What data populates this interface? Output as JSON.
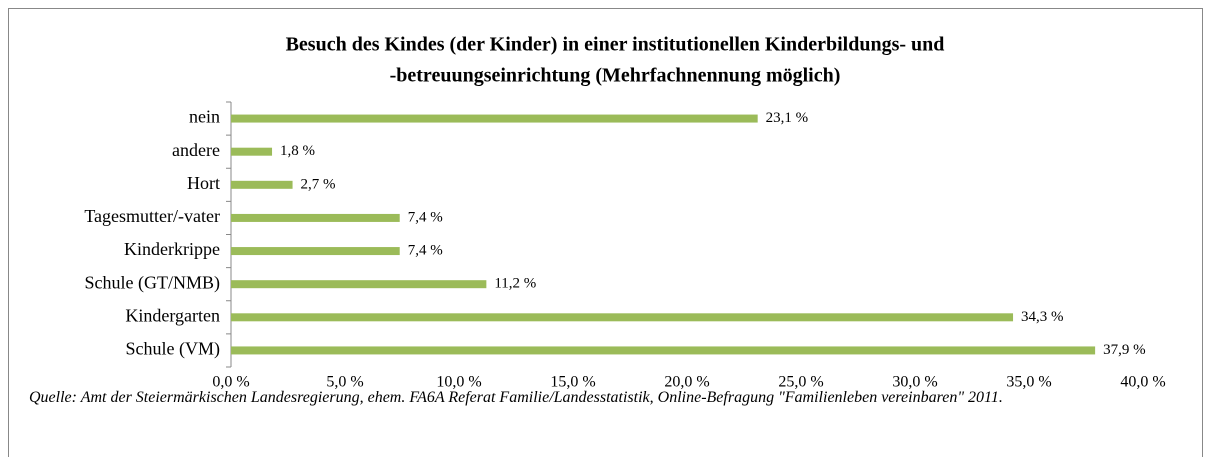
{
  "chart_data": {
    "type": "hbar",
    "title": [
      "Besuch des Kindes (der Kinder) in einer institutionellen Kinderbildungs- und",
      "-betreuungseinrichtung (Mehrfachnennung möglich)"
    ],
    "categories": [
      "nein",
      "andere",
      "Hort",
      "Tagesmutter/-vater",
      "Kinderkrippe",
      "Schule (GT/NMB)",
      "Kindergarten",
      "Schule (VM)"
    ],
    "values": [
      23.1,
      1.8,
      2.7,
      7.4,
      7.4,
      11.2,
      34.3,
      37.9
    ],
    "value_labels": [
      "23,1 %",
      "1,8 %",
      "2,7 %",
      "7,4 %",
      "7,4 %",
      "11,2 %",
      "34,3 %",
      "37,9 %"
    ],
    "color": "#9bbb59",
    "xlim": [
      0,
      40
    ],
    "xticks": [
      {
        "value": 0,
        "label": "0,0 %"
      },
      {
        "value": 5,
        "label": "5,0 %"
      },
      {
        "value": 10,
        "label": "10,0 %"
      },
      {
        "value": 15,
        "label": "15,0 %"
      },
      {
        "value": 20,
        "label": "20,0 %"
      },
      {
        "value": 25,
        "label": "25,0 %"
      },
      {
        "value": 30,
        "label": "30,0 %"
      },
      {
        "value": 35,
        "label": "35,0 %"
      },
      {
        "value": 40,
        "label": "40,0 %"
      }
    ],
    "grid": false,
    "source": "Quelle: Amt der Steiermärkischen Landesregierung, ehem. FA6A Referat Familie/Landesstatistik, Online-Befragung \"Familienleben vereinbaren\" 2011."
  }
}
